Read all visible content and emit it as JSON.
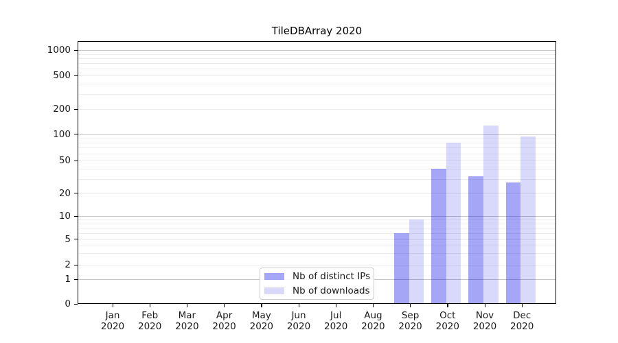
{
  "chart_data": {
    "type": "bar",
    "title": "TileDBArray 2020",
    "x_categories": [
      "Jan 2020",
      "Feb 2020",
      "Mar 2020",
      "Apr 2020",
      "May 2020",
      "Jun 2020",
      "Jul 2020",
      "Aug 2020",
      "Sep 2020",
      "Oct 2020",
      "Nov 2020",
      "Dec 2020"
    ],
    "series": [
      {
        "name": "Nb of distinct IPs",
        "color": "rgba(0,0,230,0.35)",
        "color_hex": "#a6a6f6",
        "values": [
          0,
          0,
          0,
          0,
          0,
          0,
          0,
          0,
          6,
          40,
          32,
          27
        ]
      },
      {
        "name": "Nb of downloads",
        "color": "rgba(0,0,230,0.15)",
        "color_hex": "#d9d9fb",
        "values": [
          0,
          0,
          0,
          0,
          0,
          0,
          0,
          0,
          9,
          80,
          126,
          95
        ]
      }
    ],
    "y_ticks": [
      0,
      1,
      2,
      5,
      10,
      20,
      50,
      100,
      200,
      500,
      1000
    ],
    "y_scale": "symlog",
    "ylim": [
      0,
      1300
    ],
    "xlabel": "",
    "ylabel": "",
    "grid": "both",
    "legend_position": "lower center-left",
    "background_color": "#ffffff",
    "major_grid_color": "#c6c6c6",
    "minor_grid_color": "#ececec"
  }
}
